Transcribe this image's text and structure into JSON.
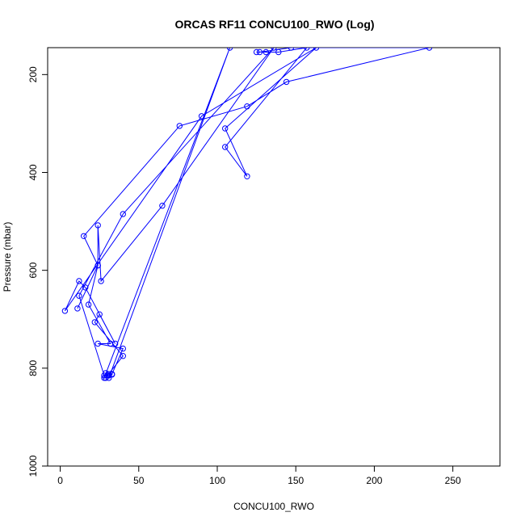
{
  "chart_data": {
    "type": "line",
    "title": "ORCAS RF11 CONCU100_RWO (Log)",
    "xlabel": "CONCU100_RWO",
    "ylabel": "Pressure (mbar)",
    "xlim": [
      -8,
      280
    ],
    "ylim": [
      1000,
      145
    ],
    "y_reversed": true,
    "xticks": [
      0,
      50,
      100,
      150,
      200,
      250
    ],
    "yticks": [
      200,
      400,
      600,
      800,
      1000
    ],
    "grid": false,
    "legend": "none",
    "color": "#0000ff",
    "marker": "open-circle",
    "series": [
      {
        "values": [
          {
            "x": 29,
            "y": 810
          },
          {
            "x": 31,
            "y": 815
          },
          {
            "x": 33,
            "y": 812
          },
          {
            "x": 40,
            "y": 760
          },
          {
            "x": 24,
            "y": 750
          },
          {
            "x": 32,
            "y": 750
          },
          {
            "x": 18,
            "y": 670
          },
          {
            "x": 24,
            "y": 590
          },
          {
            "x": 15,
            "y": 530
          },
          {
            "x": 76,
            "y": 305
          },
          {
            "x": 119,
            "y": 265
          },
          {
            "x": 144,
            "y": 215
          },
          {
            "x": 235,
            "y": 145
          },
          {
            "x": 147,
            "y": 145
          },
          {
            "x": 127,
            "y": 154
          },
          {
            "x": 125,
            "y": 154
          },
          {
            "x": 131,
            "y": 154
          },
          {
            "x": 139,
            "y": 154
          },
          {
            "x": 157,
            "y": 145
          },
          {
            "x": 105,
            "y": 348
          },
          {
            "x": 119,
            "y": 408
          },
          {
            "x": 105,
            "y": 310
          },
          {
            "x": 163,
            "y": 145
          },
          {
            "x": 90,
            "y": 285
          },
          {
            "x": 3,
            "y": 683
          },
          {
            "x": 12,
            "y": 622
          },
          {
            "x": 16,
            "y": 635
          },
          {
            "x": 35,
            "y": 750
          },
          {
            "x": 25,
            "y": 690
          },
          {
            "x": 22,
            "y": 706
          },
          {
            "x": 40,
            "y": 775
          },
          {
            "x": 30,
            "y": 815
          },
          {
            "x": 29,
            "y": 820
          },
          {
            "x": 28,
            "y": 820
          },
          {
            "x": 108,
            "y": 145
          },
          {
            "x": 31,
            "y": 820
          },
          {
            "x": 33,
            "y": 813
          },
          {
            "x": 31,
            "y": 812
          },
          {
            "x": 28,
            "y": 815
          },
          {
            "x": 12,
            "y": 652
          },
          {
            "x": 40,
            "y": 485
          },
          {
            "x": 136,
            "y": 145
          },
          {
            "x": 65,
            "y": 468
          },
          {
            "x": 26,
            "y": 622
          },
          {
            "x": 24,
            "y": 508
          },
          {
            "x": 24,
            "y": 590
          },
          {
            "x": 11,
            "y": 678
          }
        ]
      }
    ]
  }
}
